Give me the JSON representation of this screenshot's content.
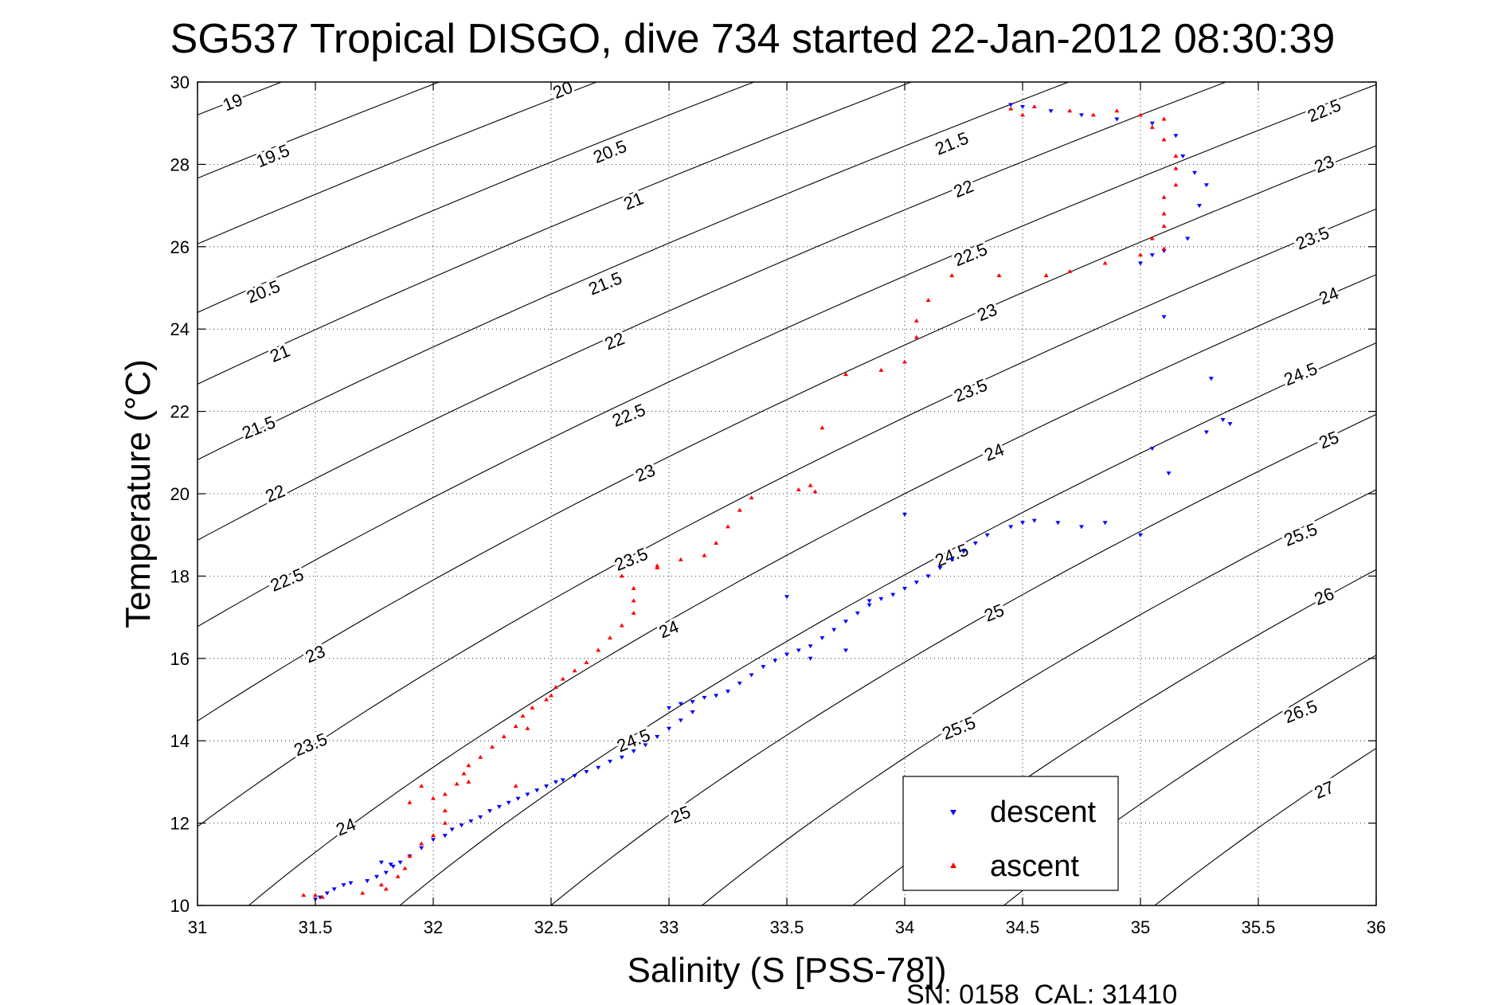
{
  "title": "SG537 Tropical DISGO, dive 734 started 22-Jan-2012 08:30:39",
  "footer": "SN: 0158  CAL: 31410",
  "chart_data": {
    "type": "scatter",
    "xlabel": "Salinity (S [PSS-78])",
    "ylabel": "Temperature (°C)",
    "xlim": [
      31,
      36
    ],
    "ylim": [
      10,
      30
    ],
    "xticks": [
      31,
      31.5,
      32,
      32.5,
      33,
      33.5,
      34,
      34.5,
      35,
      35.5,
      36
    ],
    "yticks": [
      10,
      12,
      14,
      16,
      18,
      20,
      22,
      24,
      26,
      28,
      30
    ],
    "grid": true,
    "legend_position": "bottom-right",
    "contours": {
      "type": "sigma-t isopycnals",
      "levels": [
        19,
        19.5,
        20,
        20.5,
        21,
        21.5,
        22,
        22.5,
        23,
        23.5,
        24,
        24.5,
        25,
        25.5,
        26,
        26.5,
        27
      ],
      "labels": [
        {
          "text": "19",
          "s": 31.15,
          "t": 29.5
        },
        {
          "text": "19.5",
          "s": 31.32,
          "t": 28.2
        },
        {
          "text": "20.5",
          "s": 31.28,
          "t": 24.9
        },
        {
          "text": "21",
          "s": 31.35,
          "t": 23.4
        },
        {
          "text": "21.5",
          "s": 31.26,
          "t": 21.6
        },
        {
          "text": "22",
          "s": 31.33,
          "t": 20.0
        },
        {
          "text": "22.5",
          "s": 31.38,
          "t": 17.9
        },
        {
          "text": "23",
          "s": 31.5,
          "t": 16.1
        },
        {
          "text": "23.5",
          "s": 31.48,
          "t": 13.9
        },
        {
          "text": "24",
          "s": 31.63,
          "t": 11.9
        },
        {
          "text": "20",
          "s": 32.55,
          "t": 29.8
        },
        {
          "text": "20.5",
          "s": 32.75,
          "t": 28.3
        },
        {
          "text": "21",
          "s": 32.85,
          "t": 27.1
        },
        {
          "text": "21.5",
          "s": 32.73,
          "t": 25.1
        },
        {
          "text": "22",
          "s": 32.77,
          "t": 23.7
        },
        {
          "text": "22.5",
          "s": 32.83,
          "t": 21.9
        },
        {
          "text": "23",
          "s": 32.9,
          "t": 20.5
        },
        {
          "text": "23.5",
          "s": 32.84,
          "t": 18.4
        },
        {
          "text": "24",
          "s": 33.0,
          "t": 16.7
        },
        {
          "text": "24.5",
          "s": 32.85,
          "t": 14.0
        },
        {
          "text": "25",
          "s": 33.05,
          "t": 12.2
        },
        {
          "text": "21.5",
          "s": 34.2,
          "t": 28.5
        },
        {
          "text": "22",
          "s": 34.25,
          "t": 27.4
        },
        {
          "text": "22.5",
          "s": 34.28,
          "t": 25.8
        },
        {
          "text": "23",
          "s": 34.35,
          "t": 24.4
        },
        {
          "text": "23.5",
          "s": 34.28,
          "t": 22.5
        },
        {
          "text": "24",
          "s": 34.38,
          "t": 21.0
        },
        {
          "text": "24.5",
          "s": 34.2,
          "t": 18.5
        },
        {
          "text": "25",
          "s": 34.38,
          "t": 17.1
        },
        {
          "text": "25.5",
          "s": 34.23,
          "t": 14.3
        },
        {
          "text": "22.5",
          "s": 35.78,
          "t": 29.3
        },
        {
          "text": "23",
          "s": 35.78,
          "t": 28.0
        },
        {
          "text": "23.5",
          "s": 35.73,
          "t": 26.2
        },
        {
          "text": "24",
          "s": 35.8,
          "t": 24.8
        },
        {
          "text": "24.5",
          "s": 35.68,
          "t": 22.9
        },
        {
          "text": "25",
          "s": 35.8,
          "t": 21.3
        },
        {
          "text": "25.5",
          "s": 35.68,
          "t": 19.0
        },
        {
          "text": "26",
          "s": 35.78,
          "t": 17.5
        },
        {
          "text": "26.5",
          "s": 35.68,
          "t": 14.7
        },
        {
          "text": "27",
          "s": 35.78,
          "t": 12.8
        }
      ]
    },
    "series": [
      {
        "name": "descent",
        "color": "#0000ff",
        "marker": "triangle-down",
        "points": [
          [
            31.5,
            10.15
          ],
          [
            31.52,
            10.2
          ],
          [
            31.55,
            10.3
          ],
          [
            31.58,
            10.4
          ],
          [
            31.62,
            10.5
          ],
          [
            31.65,
            10.55
          ],
          [
            31.72,
            10.6
          ],
          [
            31.76,
            10.7
          ],
          [
            31.8,
            10.8
          ],
          [
            31.83,
            10.95
          ],
          [
            31.86,
            11.05
          ],
          [
            31.78,
            11.05
          ],
          [
            31.82,
            11.0
          ],
          [
            31.9,
            11.2
          ],
          [
            31.95,
            11.4
          ],
          [
            32.0,
            11.6
          ],
          [
            32.05,
            11.7
          ],
          [
            32.08,
            11.85
          ],
          [
            32.12,
            11.95
          ],
          [
            32.16,
            12.05
          ],
          [
            32.2,
            12.15
          ],
          [
            32.24,
            12.3
          ],
          [
            32.28,
            12.4
          ],
          [
            32.32,
            12.5
          ],
          [
            32.36,
            12.6
          ],
          [
            32.4,
            12.7
          ],
          [
            32.44,
            12.8
          ],
          [
            32.48,
            12.9
          ],
          [
            32.52,
            13.0
          ],
          [
            32.55,
            13.05
          ],
          [
            32.6,
            13.15
          ],
          [
            32.65,
            13.25
          ],
          [
            32.7,
            13.35
          ],
          [
            32.75,
            13.5
          ],
          [
            32.8,
            13.6
          ],
          [
            32.85,
            13.75
          ],
          [
            32.9,
            13.9
          ],
          [
            32.95,
            14.1
          ],
          [
            33.0,
            14.3
          ],
          [
            33.05,
            14.5
          ],
          [
            33.1,
            14.7
          ],
          [
            33.0,
            14.8
          ],
          [
            33.05,
            14.9
          ],
          [
            33.1,
            14.95
          ],
          [
            33.15,
            15.05
          ],
          [
            33.2,
            15.1
          ],
          [
            33.25,
            15.2
          ],
          [
            33.3,
            15.4
          ],
          [
            33.35,
            15.6
          ],
          [
            33.4,
            15.8
          ],
          [
            33.45,
            15.95
          ],
          [
            33.5,
            16.1
          ],
          [
            33.55,
            16.2
          ],
          [
            33.6,
            16.3
          ],
          [
            33.65,
            16.5
          ],
          [
            33.7,
            16.7
          ],
          [
            33.75,
            16.9
          ],
          [
            33.8,
            17.1
          ],
          [
            33.85,
            17.3
          ],
          [
            33.9,
            17.45
          ],
          [
            33.95,
            17.55
          ],
          [
            34.0,
            17.7
          ],
          [
            34.05,
            17.85
          ],
          [
            34.1,
            18.0
          ],
          [
            34.15,
            18.2
          ],
          [
            34.2,
            18.4
          ],
          [
            34.25,
            18.6
          ],
          [
            34.3,
            18.8
          ],
          [
            34.35,
            19.0
          ],
          [
            34.45,
            19.2
          ],
          [
            34.5,
            19.3
          ],
          [
            34.55,
            19.35
          ],
          [
            34.65,
            19.3
          ],
          [
            34.75,
            19.2
          ],
          [
            34.85,
            19.3
          ],
          [
            35.0,
            19.0
          ],
          [
            35.05,
            21.1
          ],
          [
            35.12,
            20.5
          ],
          [
            35.3,
            22.8
          ],
          [
            35.35,
            21.8
          ],
          [
            35.28,
            21.5
          ],
          [
            35.38,
            21.7
          ],
          [
            35.1,
            24.3
          ],
          [
            35.2,
            26.2
          ],
          [
            35.25,
            27.0
          ],
          [
            35.28,
            27.5
          ],
          [
            35.23,
            27.8
          ],
          [
            35.18,
            28.2
          ],
          [
            35.15,
            28.7
          ],
          [
            35.05,
            29.0
          ],
          [
            34.9,
            29.1
          ],
          [
            34.75,
            29.2
          ],
          [
            34.62,
            29.3
          ],
          [
            34.5,
            29.4
          ],
          [
            34.45,
            29.45
          ],
          [
            35.0,
            25.6
          ],
          [
            35.05,
            25.8
          ],
          [
            35.1,
            25.9
          ],
          [
            33.6,
            16.0
          ],
          [
            33.75,
            16.2
          ],
          [
            33.5,
            17.5
          ],
          [
            33.85,
            17.4
          ],
          [
            34.0,
            19.5
          ]
        ]
      },
      {
        "name": "ascent",
        "color": "#ff0000",
        "marker": "triangle-up",
        "points": [
          [
            31.45,
            10.25
          ],
          [
            31.5,
            10.25
          ],
          [
            31.53,
            10.2
          ],
          [
            31.7,
            10.3
          ],
          [
            31.78,
            10.5
          ],
          [
            31.85,
            10.7
          ],
          [
            31.88,
            10.9
          ],
          [
            31.9,
            11.2
          ],
          [
            31.95,
            11.5
          ],
          [
            32.0,
            11.7
          ],
          [
            32.05,
            12.0
          ],
          [
            32.05,
            12.3
          ],
          [
            32.0,
            12.6
          ],
          [
            32.05,
            12.7
          ],
          [
            32.1,
            12.95
          ],
          [
            32.13,
            13.2
          ],
          [
            32.15,
            13.4
          ],
          [
            32.2,
            13.6
          ],
          [
            32.25,
            13.85
          ],
          [
            32.3,
            14.1
          ],
          [
            32.35,
            14.35
          ],
          [
            32.38,
            14.6
          ],
          [
            32.42,
            14.8
          ],
          [
            32.48,
            15.0
          ],
          [
            32.52,
            15.3
          ],
          [
            32.55,
            15.5
          ],
          [
            32.6,
            15.7
          ],
          [
            32.65,
            15.9
          ],
          [
            32.7,
            16.2
          ],
          [
            32.75,
            16.5
          ],
          [
            32.8,
            16.8
          ],
          [
            32.85,
            17.1
          ],
          [
            32.85,
            17.4
          ],
          [
            32.85,
            17.7
          ],
          [
            32.8,
            18.0
          ],
          [
            32.95,
            18.2
          ],
          [
            33.05,
            18.4
          ],
          [
            33.15,
            18.5
          ],
          [
            33.2,
            18.8
          ],
          [
            33.25,
            19.2
          ],
          [
            33.3,
            19.6
          ],
          [
            33.35,
            19.9
          ],
          [
            33.55,
            20.1
          ],
          [
            33.6,
            20.2
          ],
          [
            33.65,
            21.6
          ],
          [
            33.75,
            22.9
          ],
          [
            33.9,
            23.0
          ],
          [
            34.0,
            23.2
          ],
          [
            34.05,
            23.8
          ],
          [
            34.05,
            24.2
          ],
          [
            34.1,
            24.7
          ],
          [
            34.2,
            25.3
          ],
          [
            34.4,
            25.3
          ],
          [
            34.6,
            25.3
          ],
          [
            34.7,
            25.4
          ],
          [
            34.85,
            25.6
          ],
          [
            35.0,
            25.8
          ],
          [
            35.1,
            25.95
          ],
          [
            35.05,
            26.2
          ],
          [
            35.1,
            26.5
          ],
          [
            35.1,
            26.8
          ],
          [
            35.1,
            27.2
          ],
          [
            35.15,
            27.5
          ],
          [
            35.15,
            27.9
          ],
          [
            35.15,
            28.2
          ],
          [
            35.1,
            28.6
          ],
          [
            35.05,
            28.9
          ],
          [
            35.1,
            29.1
          ],
          [
            35.0,
            29.2
          ],
          [
            34.9,
            29.3
          ],
          [
            34.8,
            29.2
          ],
          [
            34.7,
            29.3
          ],
          [
            34.55,
            29.4
          ],
          [
            34.45,
            29.35
          ],
          [
            34.5,
            29.2
          ],
          [
            31.8,
            10.4
          ],
          [
            31.95,
            12.9
          ],
          [
            31.9,
            12.5
          ],
          [
            32.35,
            12.9
          ],
          [
            32.4,
            14.3
          ],
          [
            32.15,
            13.0
          ],
          [
            32.5,
            15.1
          ],
          [
            32.95,
            18.25
          ],
          [
            33.62,
            20.05
          ]
        ]
      }
    ]
  }
}
